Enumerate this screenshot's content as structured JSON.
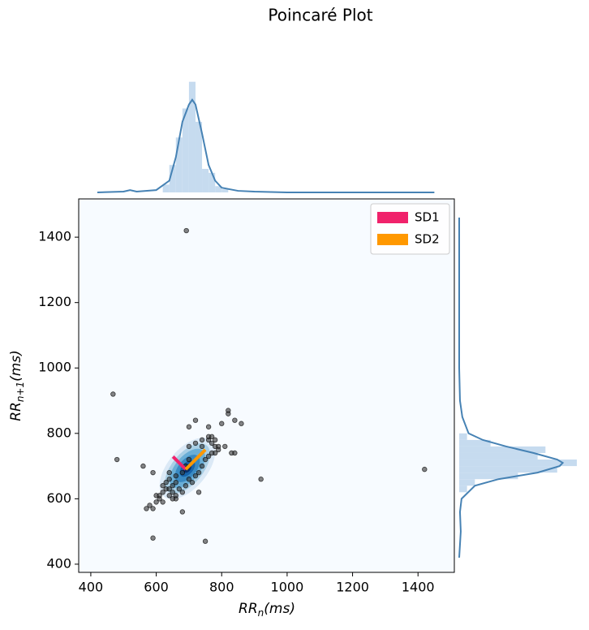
{
  "chart_data": {
    "type": "poincare",
    "title": "Poincaré Plot",
    "xlabel": {
      "main": "RR",
      "sub": "n",
      "rest": "(ms)"
    },
    "ylabel": {
      "main": "RR",
      "sub": "n+1",
      "rest": "(ms)"
    },
    "xlim": [
      363,
      1511
    ],
    "ylim": [
      375,
      1517
    ],
    "xticks": [
      400,
      600,
      800,
      1000,
      1200,
      1400
    ],
    "yticks": [
      400,
      600,
      800,
      1000,
      1200,
      1400
    ],
    "background": "#f7fbff",
    "point_color": "#333333",
    "x": [
      692,
      468,
      480,
      560,
      590,
      590,
      750,
      920,
      1420,
      680,
      820,
      820,
      840,
      860,
      800,
      760,
      720,
      700,
      840,
      830,
      780,
      790,
      810,
      760,
      770,
      780,
      790,
      620,
      600,
      610,
      580,
      570,
      590,
      600,
      610,
      620,
      630,
      640,
      650,
      660,
      630,
      640,
      650,
      660,
      670,
      680,
      690,
      700,
      710,
      720,
      730,
      740,
      750,
      760,
      770,
      640,
      650,
      660,
      700,
      720,
      740,
      740,
      760,
      770,
      780,
      680,
      690,
      700,
      730,
      660,
      640,
      620
    ],
    "y": [
      1420,
      920,
      720,
      700,
      680,
      480,
      470,
      660,
      690,
      560,
      870,
      860,
      840,
      830,
      830,
      820,
      840,
      820,
      740,
      740,
      740,
      760,
      760,
      780,
      770,
      760,
      750,
      590,
      610,
      600,
      580,
      570,
      570,
      590,
      610,
      620,
      630,
      630,
      620,
      600,
      650,
      660,
      640,
      650,
      630,
      620,
      640,
      660,
      650,
      670,
      680,
      700,
      720,
      730,
      740,
      610,
      600,
      610,
      760,
      770,
      760,
      780,
      790,
      790,
      780,
      680,
      700,
      720,
      620,
      670,
      680,
      640
    ],
    "legend": [
      {
        "name": "SD1",
        "color": "#f0226b"
      },
      {
        "name": "SD2",
        "color": "#ff9800"
      }
    ],
    "legend_loc": "upper right",
    "mean_rr": 690,
    "sd1": 55,
    "sd2": 85,
    "hist_color": "#c6dbef",
    "kde_color": "#4682b4",
    "hist_lim": [
      0,
      150
    ],
    "x_hist": {
      "bins": [
        620,
        640,
        660,
        680,
        700,
        720,
        740,
        760,
        780,
        800,
        820
      ],
      "counts": [
        10,
        35,
        70,
        107,
        141,
        90,
        30,
        25,
        8,
        4
      ]
    },
    "x_kde": {
      "x": [
        420,
        500,
        520,
        540,
        600,
        640,
        660,
        680,
        700,
        710,
        720,
        740,
        760,
        780,
        800,
        850,
        900,
        1000,
        1450
      ],
      "y": [
        0,
        1,
        3,
        1,
        3,
        15,
        45,
        90,
        112,
        118,
        112,
        75,
        35,
        15,
        6,
        2,
        1,
        0,
        0
      ]
    },
    "y_hist": {
      "bins": [
        620,
        640,
        660,
        680,
        700,
        720,
        740,
        760,
        780,
        800
      ],
      "counts": [
        10,
        20,
        75,
        125,
        150,
        100,
        110,
        40,
        10
      ]
    },
    "y_kde": {
      "x": [
        420,
        500,
        560,
        600,
        640,
        660,
        680,
        700,
        710,
        720,
        740,
        760,
        780,
        800,
        850,
        900,
        1000,
        1460
      ],
      "y": [
        0,
        2,
        1,
        3,
        20,
        50,
        100,
        128,
        132,
        125,
        95,
        60,
        30,
        12,
        4,
        1,
        0,
        0
      ]
    }
  }
}
